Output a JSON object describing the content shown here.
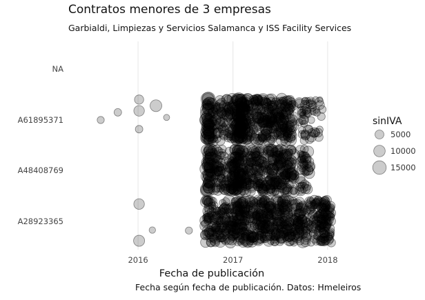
{
  "chart_data": {
    "type": "scatter",
    "title": "Contratos menores de 3 empresas",
    "subtitle": "Garbialdi, Limpiezas y Servicios Salamanca y ISS Facility Services",
    "xlabel": "Fecha de publicación",
    "ylabel": "",
    "caption": "Fecha según fecha de publicación. Datos: Hmeleiros",
    "x_axis": {
      "type": "date",
      "ticks": [
        "2016",
        "2017",
        "2018"
      ],
      "range": [
        "2015-04-15",
        "2018-05-01"
      ]
    },
    "y_axis": {
      "type": "category",
      "categories": [
        "NA",
        "A61895371",
        "A48408769",
        "A28923365"
      ]
    },
    "size_legend": {
      "title": "sinIVA",
      "values": [
        5000,
        10000,
        15000
      ]
    },
    "point_color": "#000000",
    "point_alpha": 0.2,
    "grid": {
      "major_x": true,
      "major_y": false
    },
    "legend_position": "right",
    "series": [
      {
        "category": "A61895371",
        "points": [
          {
            "x": "2015-08-10",
            "size": 2500,
            "offset": 0.0
          },
          {
            "x": "2015-10-15",
            "size": 3000,
            "offset": 0.15
          },
          {
            "x": "2016-01-05",
            "size": 5500,
            "offset": 0.4
          },
          {
            "x": "2016-01-05",
            "size": 8000,
            "offset": 0.18
          },
          {
            "x": "2016-03-10",
            "size": 10500,
            "offset": 0.28
          },
          {
            "x": "2016-01-05",
            "size": 3000,
            "offset": -0.18
          },
          {
            "x": "2016-04-20",
            "size": 1500,
            "offset": 0.05
          }
        ],
        "dense": [
          {
            "from": "2016-09-20",
            "to": "2016-10-05",
            "density": 4,
            "size_min": 4000,
            "size_max": 16000
          },
          {
            "from": "2016-10-10",
            "to": "2016-11-20",
            "density": 1.2,
            "size_min": 2000,
            "size_max": 8000
          },
          {
            "from": "2016-11-25",
            "to": "2017-01-10",
            "density": 1.4,
            "size_min": 2000,
            "size_max": 9000
          },
          {
            "from": "2017-01-15",
            "to": "2017-02-10",
            "density": 4,
            "size_min": 4000,
            "size_max": 16000
          },
          {
            "from": "2017-02-15",
            "to": "2017-04-15",
            "density": 1.6,
            "size_min": 2000,
            "size_max": 10000
          },
          {
            "from": "2017-04-20",
            "to": "2017-08-20",
            "density": 1.8,
            "size_min": 2000,
            "size_max": 11000
          },
          {
            "from": "2017-09-10",
            "to": "2017-12-15",
            "density": 0.7,
            "size_min": 1000,
            "size_max": 7000
          }
        ]
      },
      {
        "category": "A48408769",
        "points": [],
        "dense": [
          {
            "from": "2016-09-20",
            "to": "2016-10-10",
            "density": 3,
            "size_min": 4000,
            "size_max": 14000
          },
          {
            "from": "2016-10-15",
            "to": "2016-12-10",
            "density": 1.3,
            "size_min": 2000,
            "size_max": 9000
          },
          {
            "from": "2016-12-15",
            "to": "2017-02-10",
            "density": 2.4,
            "size_min": 3000,
            "size_max": 12000
          },
          {
            "from": "2017-02-15",
            "to": "2017-04-30",
            "density": 1.6,
            "size_min": 2000,
            "size_max": 10000
          },
          {
            "from": "2017-05-05",
            "to": "2017-08-25",
            "density": 1.6,
            "size_min": 2000,
            "size_max": 11000
          },
          {
            "from": "2017-09-15",
            "to": "2017-10-25",
            "density": 1.2,
            "size_min": 2000,
            "size_max": 9000
          }
        ]
      },
      {
        "category": "A28923365",
        "points": [
          {
            "x": "2016-01-05",
            "size": 8000,
            "offset": 0.34
          },
          {
            "x": "2016-01-05",
            "size": 9000,
            "offset": -0.38
          },
          {
            "x": "2016-02-25",
            "size": 1800,
            "offset": -0.17
          },
          {
            "x": "2016-07-15",
            "size": 2500,
            "offset": -0.18
          }
        ],
        "dense": [
          {
            "from": "2016-09-15",
            "to": "2016-12-10",
            "density": 1.5,
            "size_min": 2000,
            "size_max": 10000
          },
          {
            "from": "2016-12-15",
            "to": "2017-02-20",
            "density": 2.0,
            "size_min": 2000,
            "size_max": 11000
          },
          {
            "from": "2017-02-25",
            "to": "2017-05-31",
            "density": 1.8,
            "size_min": 2000,
            "size_max": 11000
          },
          {
            "from": "2017-06-05",
            "to": "2017-10-15",
            "density": 1.5,
            "size_min": 2000,
            "size_max": 12000
          },
          {
            "from": "2017-10-20",
            "to": "2017-12-31",
            "density": 1.4,
            "size_min": 1000,
            "size_max": 8000
          },
          {
            "from": "2017-11-25",
            "to": "2018-01-15",
            "density": 1.6,
            "size_min": 1500,
            "size_max": 7000
          }
        ]
      }
    ]
  }
}
